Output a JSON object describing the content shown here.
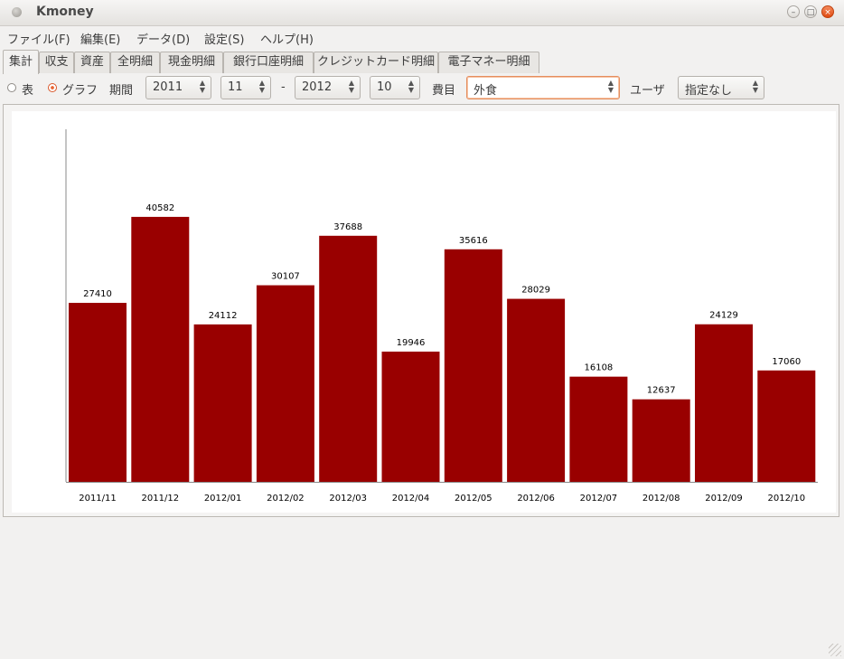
{
  "window": {
    "title": "Kmoney"
  },
  "menu": [
    "ファイル(F)",
    "編集(E)",
    "データ(D)",
    "設定(S)",
    "ヘルプ(H)"
  ],
  "tabs": [
    "集計",
    "収支",
    "資産",
    "全明細",
    "現金明細",
    "銀行口座明細",
    "クレジットカード明細",
    "電子マネー明細"
  ],
  "controls": {
    "view_table_label": "表",
    "view_graph_label": "グラフ",
    "view_selected": "グラフ",
    "period_label": "期間",
    "from_year": "2011",
    "from_month": "11",
    "separator": "-",
    "to_year": "2012",
    "to_month": "10",
    "category_label": "費目",
    "category_value": "外食",
    "user_label": "ユーザ",
    "user_value": "指定なし"
  },
  "chart_data": {
    "type": "bar",
    "categories": [
      "2011/11",
      "2011/12",
      "2012/01",
      "2012/02",
      "2012/03",
      "2012/04",
      "2012/05",
      "2012/06",
      "2012/07",
      "2012/08",
      "2012/09",
      "2012/10"
    ],
    "values": [
      27410,
      40582,
      24112,
      30107,
      37688,
      19946,
      35616,
      28029,
      16108,
      12637,
      24129,
      17060
    ],
    "ylim": [
      0,
      54000
    ],
    "bar_color": "#990000",
    "grid": false,
    "legend": "none"
  }
}
